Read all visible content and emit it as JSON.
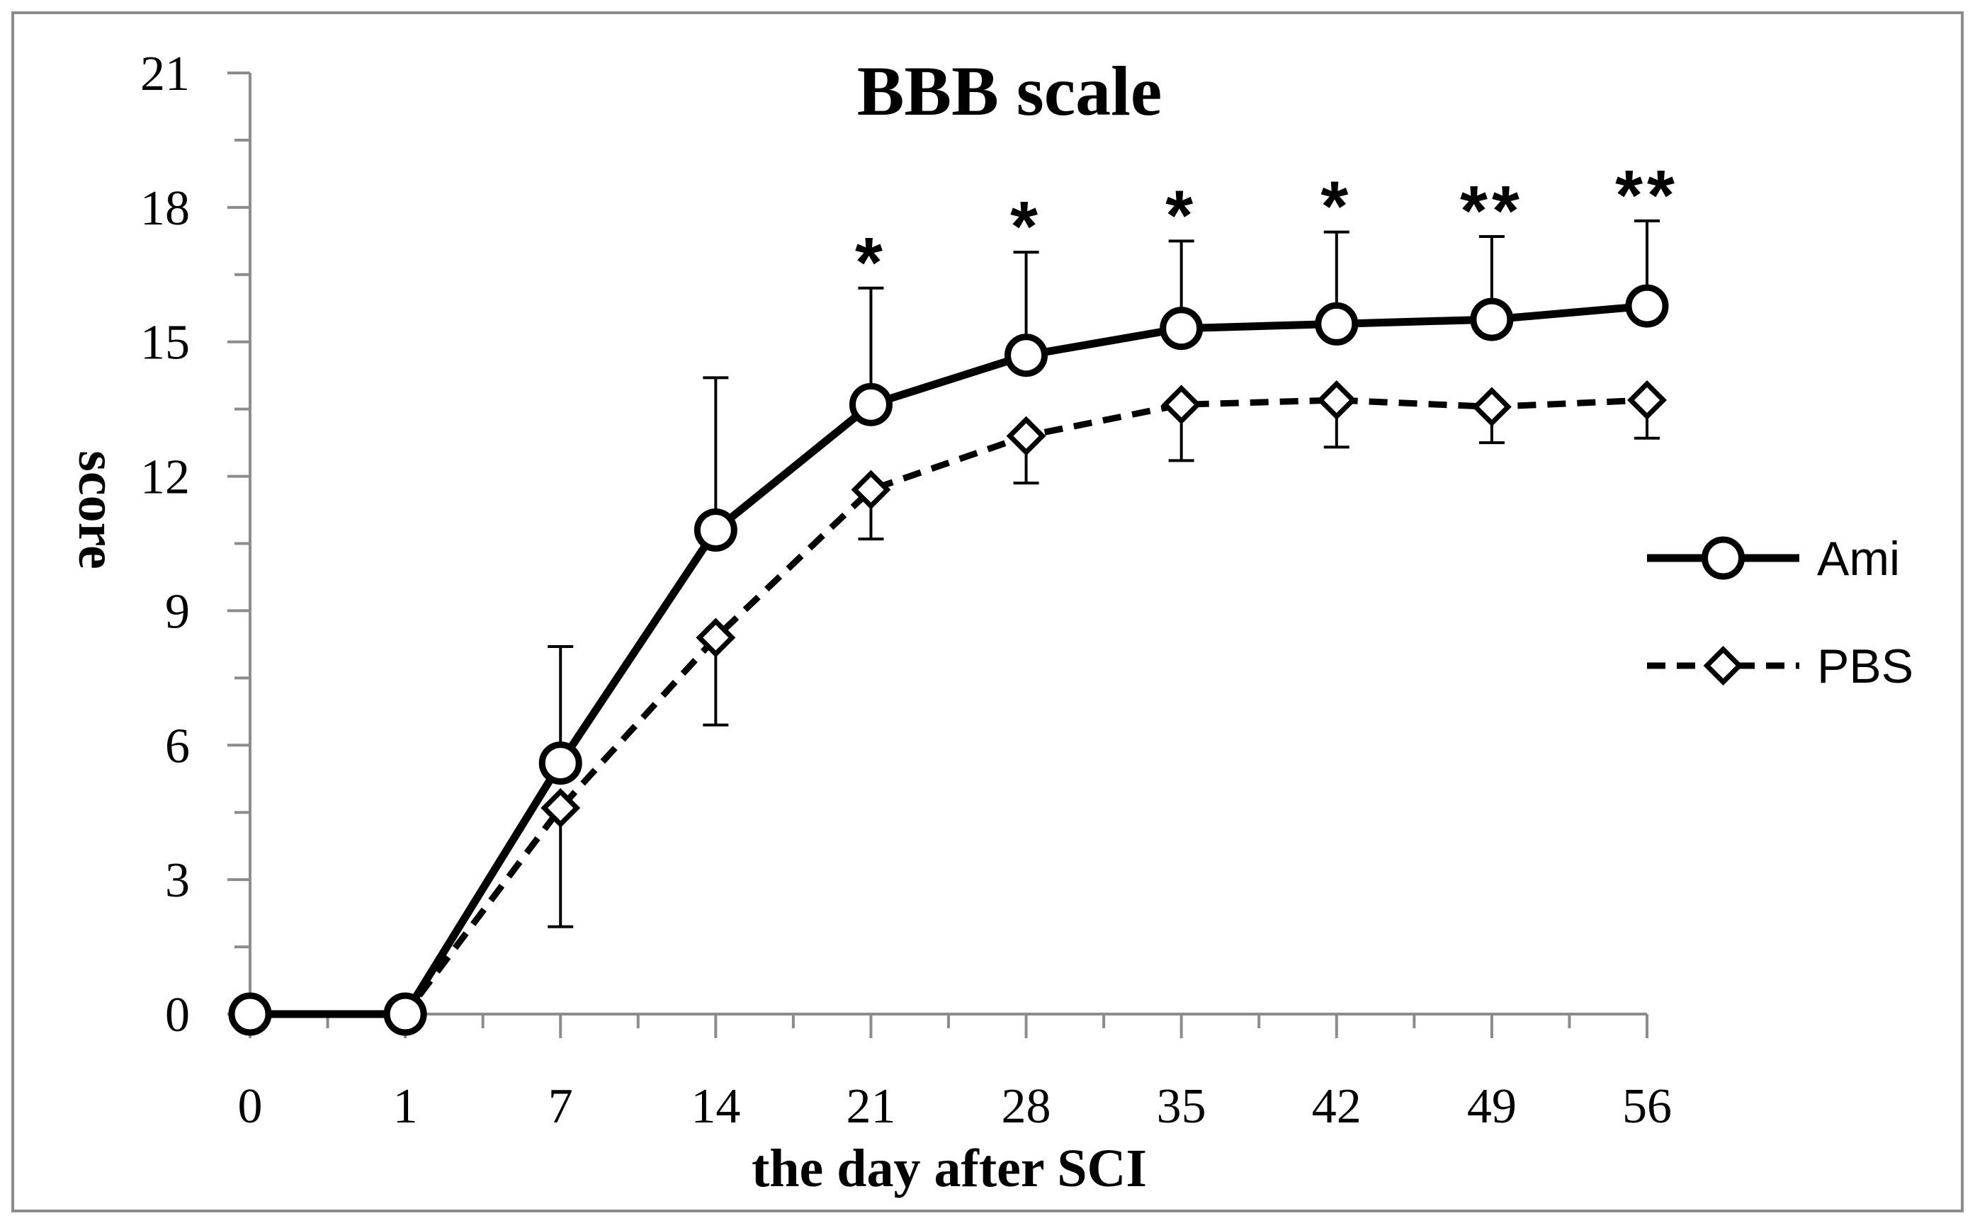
{
  "chart_data": {
    "type": "line",
    "title": "BBB scale",
    "xlabel": "the day after SCI",
    "ylabel": "score",
    "categories": [
      "0",
      "1",
      "7",
      "14",
      "21",
      "28",
      "35",
      "42",
      "49",
      "56"
    ],
    "ylim": [
      0,
      21
    ],
    "yticks": [
      "0",
      "3",
      "6",
      "9",
      "12",
      "15",
      "18",
      "21"
    ],
    "grid": false,
    "legend_position": "right",
    "series": [
      {
        "name": "Ami",
        "line_style": "solid",
        "marker": "circle",
        "values": [
          0,
          0,
          5.6,
          10.8,
          13.6,
          14.7,
          15.3,
          15.4,
          15.5,
          15.8
        ],
        "error_plus": [
          0,
          0,
          2.6,
          3.4,
          2.6,
          2.3,
          1.95,
          2.05,
          1.85,
          1.9
        ]
      },
      {
        "name": "PBS",
        "line_style": "dashed",
        "marker": "diamond",
        "values": [
          0,
          0,
          4.6,
          8.4,
          11.7,
          12.9,
          13.6,
          13.7,
          13.55,
          13.7
        ],
        "error_minus": [
          0,
          0,
          2.65,
          1.95,
          1.1,
          1.05,
          1.25,
          1.05,
          0.8,
          0.85
        ]
      }
    ],
    "annotations": [
      {
        "category": "21",
        "text": "*"
      },
      {
        "category": "28",
        "text": "*"
      },
      {
        "category": "35",
        "text": "*"
      },
      {
        "category": "42",
        "text": "*"
      },
      {
        "category": "49",
        "text": "**"
      },
      {
        "category": "56",
        "text": "**"
      }
    ],
    "colors": {
      "line": "#000000",
      "marker_fill": "#ffffff",
      "axis": "#8c8c8c",
      "border": "#8c8c8c",
      "background": "#ffffff"
    }
  }
}
